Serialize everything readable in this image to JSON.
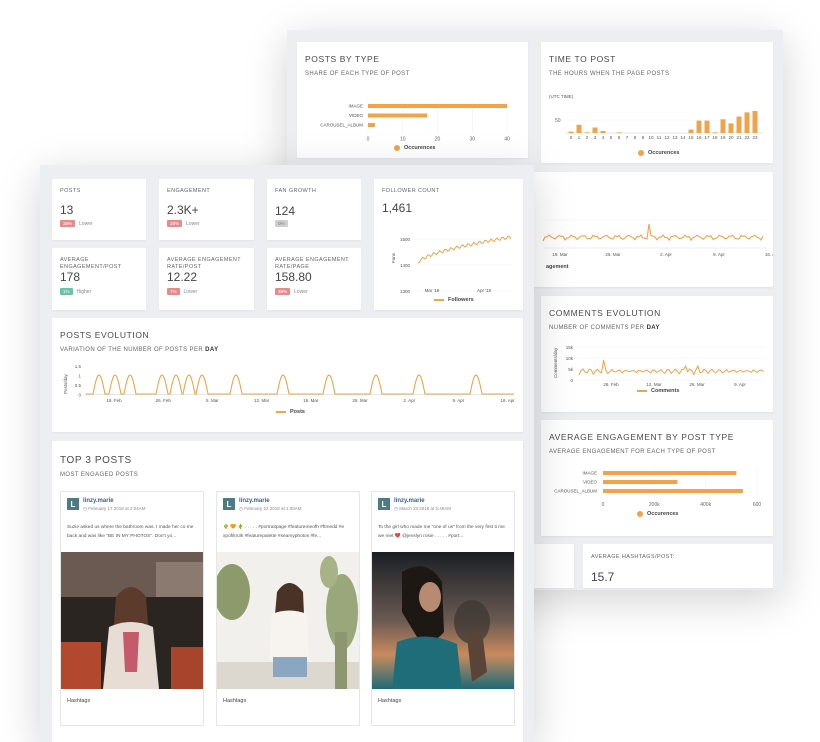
{
  "back": {
    "posts_by_type": {
      "title": "POSTS BY TYPE",
      "subtitle": "SHARE OF EACH TYPE OF POST",
      "legend": "Occurences",
      "chart_data": {
        "type": "bar",
        "orientation": "horizontal",
        "categories": [
          "IMAGE",
          "VIDEO",
          "CAROUSEL_ALBUM"
        ],
        "values": [
          40,
          17,
          2
        ],
        "xlim": [
          0,
          40
        ],
        "xticks": [
          "0",
          "10",
          "20",
          "30",
          "40"
        ]
      }
    },
    "time_to_post": {
      "title": "TIME TO POST",
      "subtitle": "THE HOURS WHEN THE PAGE POSTS",
      "axis_unit": "(UTC TIME)",
      "ytick": "50",
      "legend": "Occurences",
      "chart_data": {
        "type": "bar",
        "categories": [
          "0",
          "1",
          "2",
          "3",
          "4",
          "5",
          "6",
          "7",
          "8",
          "9",
          "10",
          "11",
          "12",
          "13",
          "14",
          "15",
          "16",
          "17",
          "18",
          "19",
          "20",
          "21",
          "22",
          "23"
        ],
        "values": [
          2,
          12,
          1,
          8,
          3,
          0,
          1,
          0,
          0,
          0,
          0,
          0,
          0,
          0,
          0,
          5,
          18,
          18,
          1,
          20,
          14,
          24,
          30,
          32
        ]
      }
    },
    "likes_evolution": {
      "legend_suffix": "agement",
      "chart_data": {
        "type": "line",
        "xticks": [
          "19. Mar",
          "26. Mar",
          "2. Apr",
          "9. Apr",
          "16. Apr"
        ]
      }
    },
    "comments_evolution": {
      "title": "COMMENTS EVOLUTION",
      "subtitle_prefix": "NUMBER OF COMMENTS PER",
      "subtitle_bold": "DAY",
      "ylabel": "Comments/day",
      "legend": "Comments",
      "chart_data": {
        "type": "line",
        "yticks": [
          "15k",
          "10k",
          "5k",
          "0"
        ],
        "xticks": [
          "26. Feb",
          "12. Mar",
          "26. Mar",
          "9. Apr"
        ]
      }
    },
    "avg_engagement_type": {
      "title": "AVERAGE ENGAGEMENT BY POST TYPE",
      "subtitle": "AVERAGE ENGAGEMENT FOR EACH TYPE OF POST",
      "legend": "Occurences",
      "chart_data": {
        "type": "bar",
        "orientation": "horizontal",
        "categories": [
          "IMAGE",
          "VIDEO",
          "CAROUSEL_ALBUM"
        ],
        "values": [
          520,
          290,
          545
        ],
        "xlim": [
          0,
          600
        ],
        "xticks": [
          "0",
          "200k",
          "400k",
          "600"
        ]
      }
    },
    "avg_hashtags": {
      "label": "AVERAGE HASHTAGS/POST:",
      "value": "15.7"
    }
  },
  "kpis": [
    {
      "label": "POSTS",
      "value": "13",
      "badge": "38%",
      "badge_color": "red",
      "note": "Lower"
    },
    {
      "label": "ENGAGEMENT",
      "value": "2.3K+",
      "badge": "28%",
      "badge_color": "red",
      "note": "Lower"
    },
    {
      "label": "FAN GROWTH",
      "value": "124",
      "badge": "0%",
      "badge_color": "grey",
      "note": ""
    },
    {
      "label": "AVERAGE ENGAGEMENT/POST",
      "value": "178",
      "badge": "1%",
      "badge_color": "green",
      "note": "Higher"
    },
    {
      "label": "AVERAGE ENGAGEMENT RATE/POST",
      "value": "12.22",
      "badge": "7%",
      "badge_color": "red",
      "note": "Lower"
    },
    {
      "label": "AVERAGE ENGAGEMENT RATE/PAGE",
      "value": "158.80",
      "badge": "38%",
      "badge_color": "red",
      "note": "Lower"
    }
  ],
  "follower_count": {
    "title": "FOLLOWER COUNT",
    "value": "1,461",
    "ylabel": "Fans",
    "legend": "Followers",
    "chart_data": {
      "type": "line",
      "yticks": [
        "1500",
        "1400",
        "1300"
      ],
      "xticks": [
        "Mar '18",
        "Apr '18"
      ]
    }
  },
  "posts_evolution": {
    "title": "POSTS EVOLUTION",
    "subtitle_prefix": "VARIATION OF THE NUMBER OF POSTS PER",
    "subtitle_bold": "DAY",
    "ylabel": "Posts/day",
    "legend": "Posts",
    "chart_data": {
      "type": "line",
      "yticks": [
        "1.5",
        "1",
        "0.5",
        "0"
      ],
      "xticks": [
        "19. Feb",
        "26. Feb",
        "5. Mar",
        "12. Mar",
        "19. Mar",
        "26. Mar",
        "2. Apr",
        "9. Apr",
        "16. Apr"
      ]
    }
  },
  "top_posts": {
    "title": "TOP 3 POSTS",
    "subtitle": "MOST ENGAGED POSTS",
    "posts": [
      {
        "avatar": "L",
        "user": "linzy.marie",
        "date": "February 17 2018 at 2:04AM",
        "text": "Suzie asked us where the bathroom was. I made her co me back and was like \"BE IN MY PHOTOS\". Don't yo...",
        "hashtags": "Hashtags"
      },
      {
        "avatar": "L",
        "user": "linzy.marie",
        "date": "February 22 2018 at 1:00AM",
        "text": "🌵 🧡 🌵 . . . . . #portraitpage #featuremeofh #ftmedd #e xpofilm3k #featurepalette #seamyphotos #fe...",
        "hashtags": "Hashtags"
      },
      {
        "avatar": "L",
        "user": "linzy.marie",
        "date": "March 23 2018 at 5:49AM",
        "text": "To the girl who made me \"one of us\" from the very first ti me we met ❤️ @jenslyn rosie . . . . . #port...",
        "hashtags": "Hashtags"
      }
    ]
  },
  "colors": {
    "accent": "#f0a34a",
    "card": "#ffffff",
    "sheet": "#eceef1"
  }
}
